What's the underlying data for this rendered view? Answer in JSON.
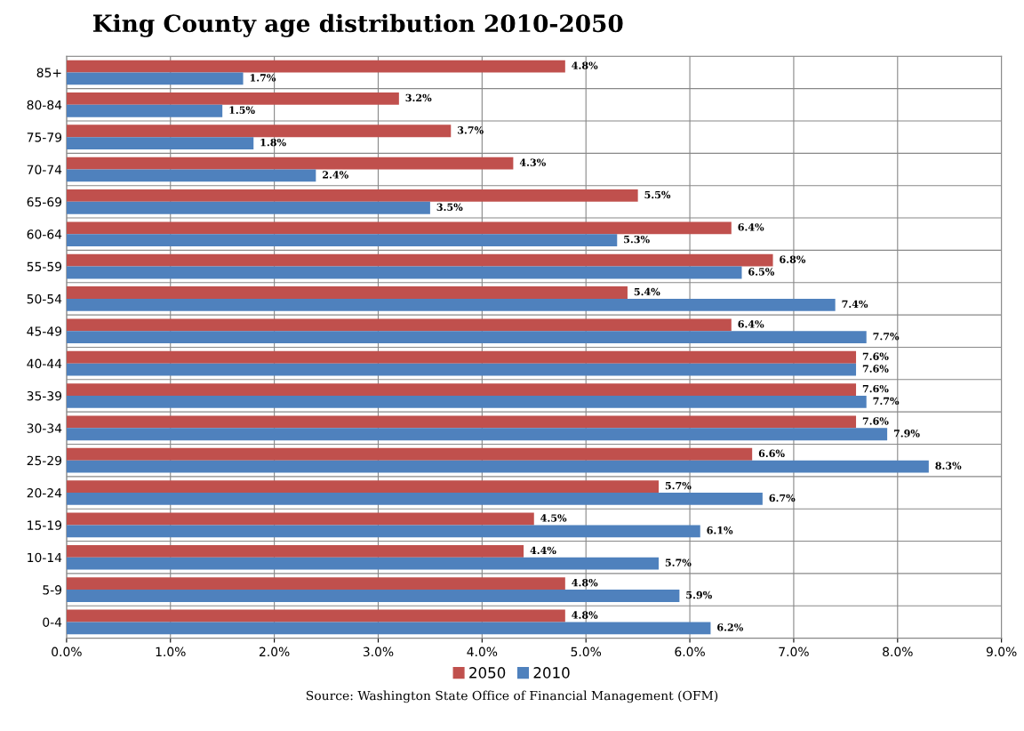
{
  "chart_data": {
    "type": "bar",
    "orientation": "horizontal",
    "title": "King County age distribution 2010-2050",
    "categories": [
      "85+",
      "80-84",
      "75-79",
      "70-74",
      "65-69",
      "60-64",
      "55-59",
      "50-54",
      "45-49",
      "40-44",
      "35-39",
      "30-34",
      "25-29",
      "20-24",
      "15-19",
      "10-14",
      "5-9",
      "0-4"
    ],
    "series": [
      {
        "name": "2050",
        "color": "#c0504d",
        "values": [
          4.8,
          3.2,
          3.7,
          4.3,
          5.5,
          6.4,
          6.8,
          5.4,
          6.4,
          7.6,
          7.6,
          7.6,
          6.6,
          5.7,
          4.5,
          4.4,
          4.8,
          4.8
        ],
        "value_labels": [
          "4.8%",
          "3.2%",
          "3.7%",
          "4.3%",
          "5.5%",
          "6.4%",
          "6.8%",
          "5.4%",
          "6.4%",
          "7.6%",
          "7.6%",
          "7.6%",
          "6.6%",
          "5.7%",
          "4.5%",
          "4.4%",
          "4.8%",
          "4.8%"
        ]
      },
      {
        "name": "2010",
        "color": "#4f81bd",
        "values": [
          1.7,
          1.5,
          1.8,
          2.4,
          3.5,
          5.3,
          6.5,
          7.4,
          7.7,
          7.6,
          7.7,
          7.9,
          8.3,
          6.7,
          6.1,
          5.7,
          5.9,
          6.2
        ],
        "value_labels": [
          "1.7%",
          "1.5%",
          "1.8%",
          "2.4%",
          "3.5%",
          "5.3%",
          "6.5%",
          "7.4%",
          "7.7%",
          "7.6%",
          "7.7%",
          "7.9%",
          "8.3%",
          "6.7%",
          "6.1%",
          "5.7%",
          "5.9%",
          "6.2%"
        ]
      }
    ],
    "xlim": [
      0,
      9
    ],
    "xticks": [
      {
        "value": 0,
        "label": "0.0%"
      },
      {
        "value": 1,
        "label": "1.0%"
      },
      {
        "value": 2,
        "label": "2.0%"
      },
      {
        "value": 3,
        "label": "3.0%"
      },
      {
        "value": 4,
        "label": "4.0%"
      },
      {
        "value": 5,
        "label": "5.0%"
      },
      {
        "value": 6,
        "label": "6.0%"
      },
      {
        "value": 7,
        "label": "7.0%"
      },
      {
        "value": 8,
        "label": "8.0%"
      },
      {
        "value": 9,
        "label": "9.0%"
      }
    ],
    "grid": true,
    "legend": "bottom",
    "annotations": [
      "Source: Washington State Office of Financial Management (OFM)"
    ]
  }
}
